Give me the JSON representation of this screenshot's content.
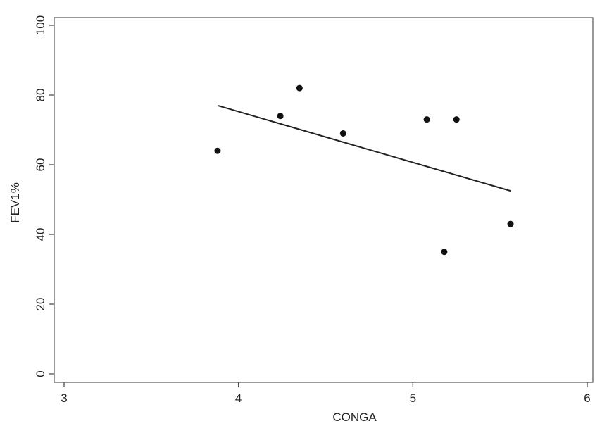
{
  "chart_data": {
    "type": "scatter",
    "title": "",
    "xlabel": "CONGA",
    "ylabel": "FEV1%",
    "xlim": [
      3,
      6
    ],
    "ylim": [
      0,
      100
    ],
    "xticks": [
      3,
      4,
      5,
      6
    ],
    "yticks": [
      0,
      20,
      40,
      60,
      80,
      100
    ],
    "grid": false,
    "points": [
      {
        "x": 3.88,
        "y": 64
      },
      {
        "x": 4.24,
        "y": 74
      },
      {
        "x": 4.35,
        "y": 82
      },
      {
        "x": 4.6,
        "y": 69
      },
      {
        "x": 5.08,
        "y": 73
      },
      {
        "x": 5.18,
        "y": 35
      },
      {
        "x": 5.25,
        "y": 73
      },
      {
        "x": 5.56,
        "y": 43
      }
    ],
    "fit_line": {
      "x": [
        3.88,
        5.56
      ],
      "y": [
        77,
        52.5
      ]
    },
    "colors": {
      "points": "#111111",
      "line": "#222222",
      "frame": "#555555",
      "background": "#ffffff"
    }
  }
}
